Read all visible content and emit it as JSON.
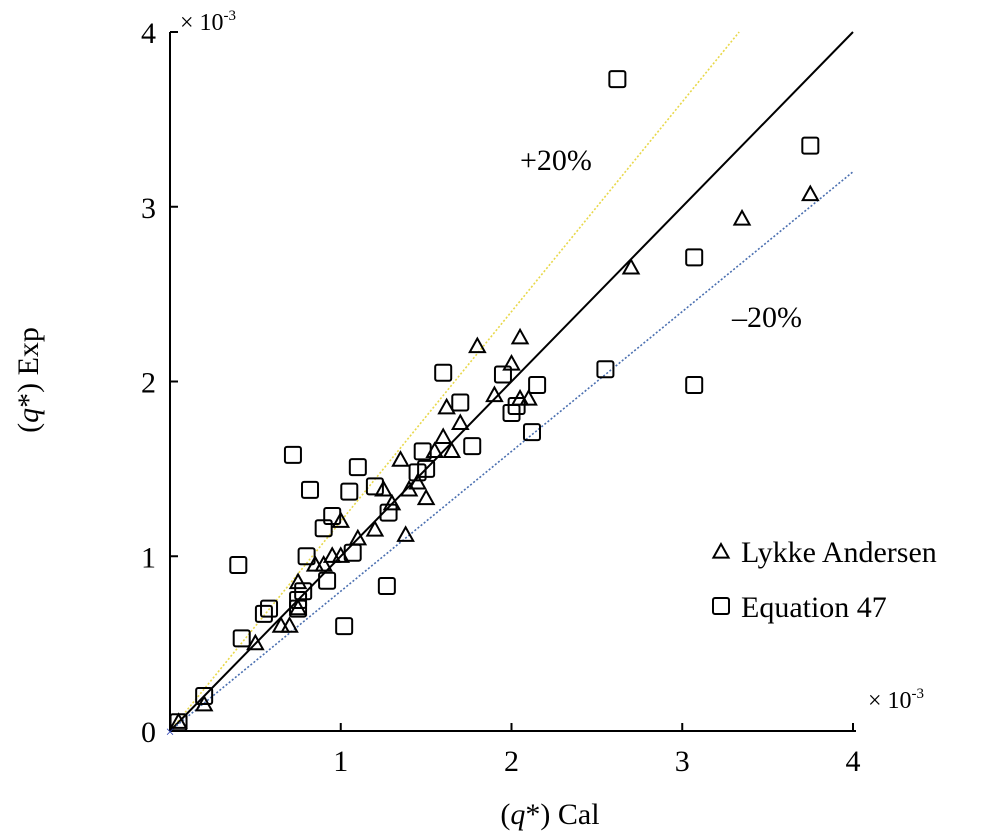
{
  "chart_data": {
    "type": "scatter",
    "xlabel_pre": "(",
    "xlabel_var": "q",
    "xlabel_post": "*) Cal",
    "ylabel_pre": "(",
    "ylabel_var": "q",
    "ylabel_post": "*) Exp",
    "xlim": [
      0,
      4
    ],
    "ylim": [
      0,
      4
    ],
    "x_ticks": [
      "1",
      "2",
      "3",
      "4"
    ],
    "y_ticks": [
      "0",
      "1",
      "2",
      "3",
      "4"
    ],
    "x_scale_base": "× 10",
    "x_scale_exp": "-3",
    "y_scale_base": "× 10",
    "y_scale_exp": "-3",
    "legend_position": "right",
    "reference_lines": [
      {
        "label": "+20%",
        "slope": 1.2,
        "color": "#e8d84a",
        "style": "dotted"
      },
      {
        "label": "",
        "slope": 1.0,
        "color": "#000000",
        "style": "solid"
      },
      {
        "label": "–20%",
        "slope": 0.8,
        "color": "#4a6fb0",
        "style": "dotted"
      }
    ],
    "series": [
      {
        "name": "Lykke Andersen",
        "marker": "triangle",
        "points": [
          [
            0.05,
            0.05
          ],
          [
            0.2,
            0.15
          ],
          [
            0.5,
            0.5
          ],
          [
            0.65,
            0.6
          ],
          [
            0.7,
            0.6
          ],
          [
            0.75,
            0.7
          ],
          [
            0.75,
            0.85
          ],
          [
            0.85,
            0.95
          ],
          [
            0.9,
            0.95
          ],
          [
            0.95,
            1.0
          ],
          [
            1.0,
            1.0
          ],
          [
            1.0,
            1.2
          ],
          [
            1.1,
            1.1
          ],
          [
            1.2,
            1.15
          ],
          [
            1.25,
            1.38
          ],
          [
            1.3,
            1.3
          ],
          [
            1.35,
            1.55
          ],
          [
            1.38,
            1.12
          ],
          [
            1.4,
            1.38
          ],
          [
            1.45,
            1.42
          ],
          [
            1.5,
            1.33
          ],
          [
            1.55,
            1.6
          ],
          [
            1.6,
            1.68
          ],
          [
            1.62,
            1.85
          ],
          [
            1.65,
            1.6
          ],
          [
            1.7,
            1.76
          ],
          [
            1.8,
            2.2
          ],
          [
            1.9,
            1.92
          ],
          [
            2.0,
            2.1
          ],
          [
            2.05,
            2.25
          ],
          [
            2.05,
            1.9
          ],
          [
            2.1,
            1.9
          ],
          [
            2.7,
            2.65
          ],
          [
            3.35,
            2.93
          ],
          [
            3.75,
            3.07
          ]
        ]
      },
      {
        "name": "Equation 47",
        "marker": "square",
        "points": [
          [
            0.05,
            0.05
          ],
          [
            0.2,
            0.2
          ],
          [
            0.4,
            0.95
          ],
          [
            0.42,
            0.53
          ],
          [
            0.55,
            0.67
          ],
          [
            0.58,
            0.7
          ],
          [
            0.72,
            1.58
          ],
          [
            0.75,
            0.7
          ],
          [
            0.75,
            0.75
          ],
          [
            0.78,
            0.8
          ],
          [
            0.8,
            1.0
          ],
          [
            0.82,
            1.38
          ],
          [
            0.9,
            1.16
          ],
          [
            0.92,
            0.86
          ],
          [
            0.95,
            1.23
          ],
          [
            1.02,
            0.6
          ],
          [
            1.05,
            1.37
          ],
          [
            1.07,
            1.02
          ],
          [
            1.1,
            1.51
          ],
          [
            1.2,
            1.4
          ],
          [
            1.27,
            0.83
          ],
          [
            1.28,
            1.25
          ],
          [
            1.45,
            1.48
          ],
          [
            1.48,
            1.6
          ],
          [
            1.5,
            1.5
          ],
          [
            1.6,
            2.05
          ],
          [
            1.7,
            1.88
          ],
          [
            1.77,
            1.63
          ],
          [
            1.95,
            2.04
          ],
          [
            2.0,
            1.82
          ],
          [
            2.03,
            1.86
          ],
          [
            2.12,
            1.71
          ],
          [
            2.15,
            1.98
          ],
          [
            2.55,
            2.07
          ],
          [
            2.62,
            3.73
          ],
          [
            3.07,
            2.71
          ],
          [
            3.07,
            1.98
          ],
          [
            3.75,
            3.35
          ]
        ]
      }
    ]
  }
}
